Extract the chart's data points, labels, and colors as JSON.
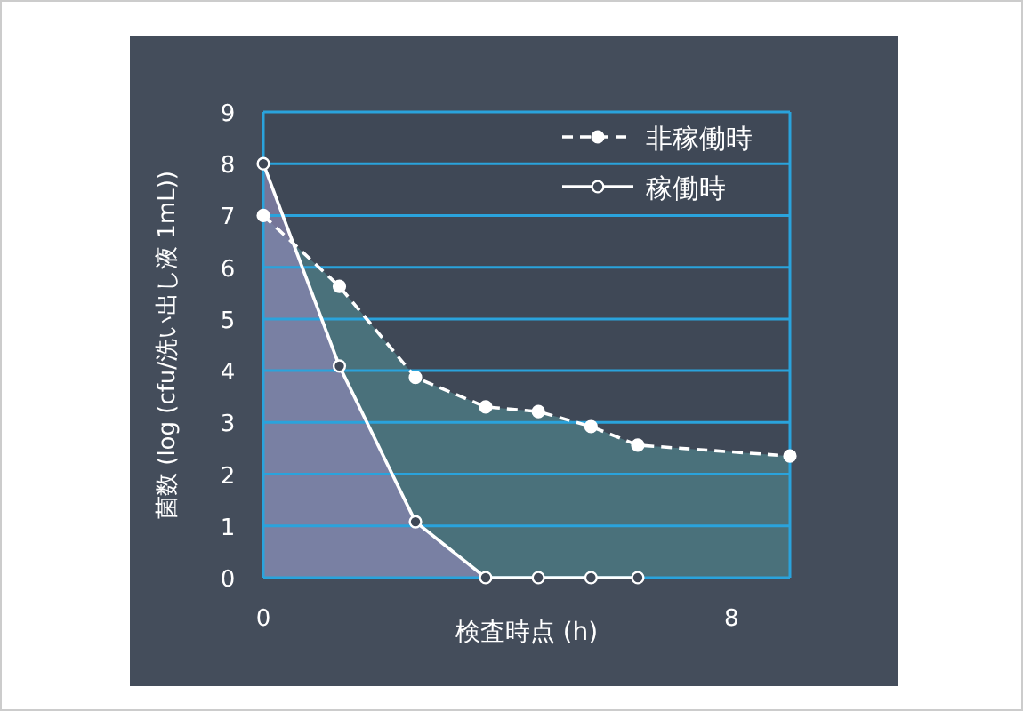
{
  "chart_data": {
    "type": "area",
    "xlabel": "検査時点 (h)",
    "ylabel": "菌数 (log (cfu/洗い出し液 1mL))",
    "xlim": [
      0,
      9
    ],
    "xticks": [
      0,
      8
    ],
    "ylim": [
      0,
      9
    ],
    "yticks": [
      0,
      1,
      2,
      3,
      4,
      5,
      6,
      7,
      8,
      9
    ],
    "grid": "y",
    "legend": "top right",
    "marker": "circle",
    "series": [
      {
        "name": "非稼働時",
        "color": "#4f7f88",
        "line_style": "dashed",
        "x": [
          0,
          1.3,
          2.6,
          3.8,
          4.7,
          5.6,
          6.4,
          9
        ],
        "values": [
          7,
          5.63,
          3.87,
          3.3,
          3.21,
          2.92,
          2.56,
          2.35
        ]
      },
      {
        "name": "稼働時",
        "color": "#8a86b0",
        "line_style": "solid",
        "x": [
          0,
          1.3,
          2.6,
          3.8,
          4.7,
          5.6,
          6.4
        ],
        "values": [
          8,
          4.09,
          1.08,
          0,
          0,
          0,
          0
        ]
      }
    ]
  }
}
